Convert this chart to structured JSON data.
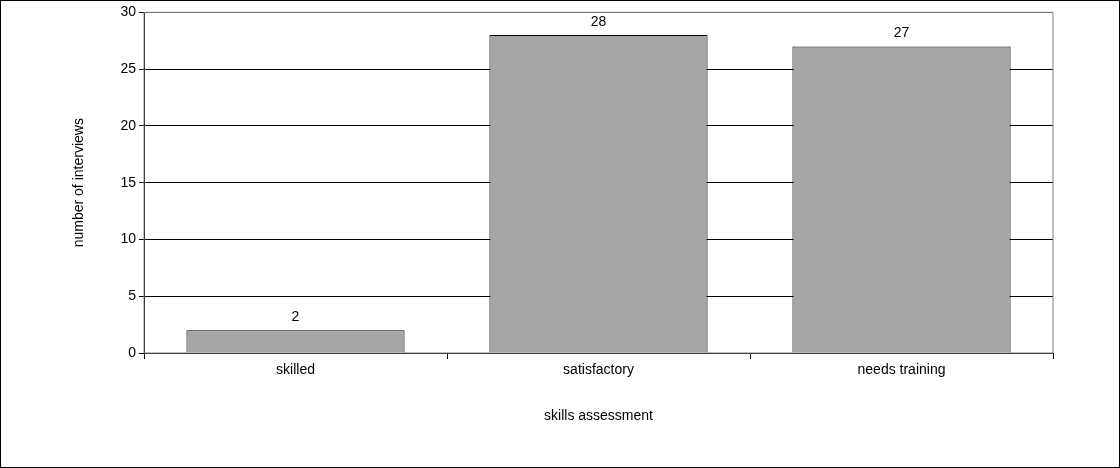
{
  "chart_data": {
    "type": "bar",
    "xlabel": "skills assessment",
    "ylabel": "number of interviews",
    "categories": [
      "skilled",
      "satisfactory",
      "needs training"
    ],
    "values": [
      2,
      28,
      27
    ],
    "color": "#a6a6a6",
    "ylim": [
      0,
      30
    ],
    "yticks": [
      0,
      5,
      10,
      15,
      20,
      25,
      30
    ],
    "grid": "y",
    "data_labels": true,
    "legend": false
  }
}
